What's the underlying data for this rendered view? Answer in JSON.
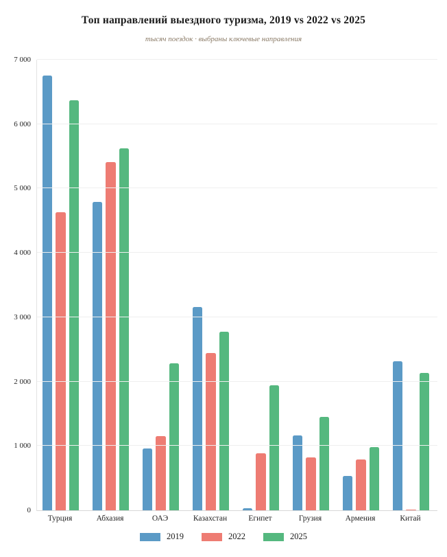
{
  "chart_data": {
    "type": "bar",
    "title": "Топ направлений выездного туризма, 2019 vs 2022 vs 2025",
    "subtitle": "тысяч поездок · выбраны ключевые направления",
    "categories": [
      "Турция",
      "Абхазия",
      "ОАЭ",
      "Казахстан",
      "Египет",
      "Грузия",
      "Армения",
      "Китай"
    ],
    "series": [
      {
        "name": "2019",
        "color": "#5b9ac6",
        "values": [
          6760,
          4790,
          960,
          3160,
          30,
          1160,
          530,
          2320
        ]
      },
      {
        "name": "2022",
        "color": "#ee7c73",
        "values": [
          4630,
          5410,
          1150,
          2440,
          890,
          820,
          790,
          15
        ]
      },
      {
        "name": "2025",
        "color": "#55b87f",
        "values": [
          6370,
          5620,
          2280,
          2770,
          1940,
          1450,
          980,
          2130
        ]
      }
    ],
    "ylim": [
      0,
      7000
    ],
    "ytick_step": 1000,
    "ytick_labels": [
      "0",
      "1 000",
      "2 000",
      "3 000",
      "4 000",
      "5 000",
      "6 000",
      "7 000"
    ],
    "grid": "horizontal",
    "legend_position": "bottom",
    "colors": {
      "background": "#ffffff",
      "gridline": "#efefef",
      "axis": "#d8d8d8",
      "subtitle_text": "#8a7a66",
      "title_text": "#1a1a1a"
    }
  }
}
